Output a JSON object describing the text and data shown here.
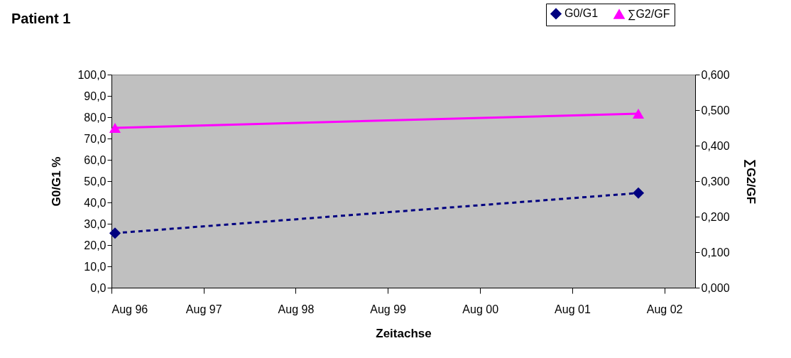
{
  "chart_data": {
    "type": "line",
    "title": "Patient 1",
    "xlabel": "Zeitachse",
    "ylabel": "G0/G1 %",
    "y2label": "∑G2/GF",
    "xlim": [
      "1996-08-01",
      "2002-12-01"
    ],
    "xticks": [
      {
        "value": "1996-08-01",
        "label": "Aug 96"
      },
      {
        "value": "1997-08-01",
        "label": "Aug 97"
      },
      {
        "value": "1998-08-01",
        "label": "Aug 98"
      },
      {
        "value": "1999-08-01",
        "label": "Aug 99"
      },
      {
        "value": "2000-08-01",
        "label": "Aug 00"
      },
      {
        "value": "2001-08-01",
        "label": "Aug 01"
      },
      {
        "value": "2002-08-01",
        "label": "Aug 02"
      }
    ],
    "ylim": [
      0,
      100
    ],
    "yticks": [
      {
        "value": 0,
        "label": "0,0"
      },
      {
        "value": 10,
        "label": "10,0"
      },
      {
        "value": 20,
        "label": "20,0"
      },
      {
        "value": 30,
        "label": "30,0"
      },
      {
        "value": 40,
        "label": "40,0"
      },
      {
        "value": 50,
        "label": "50,0"
      },
      {
        "value": 60,
        "label": "60,0"
      },
      {
        "value": 70,
        "label": "70,0"
      },
      {
        "value": 80,
        "label": "80,0"
      },
      {
        "value": 90,
        "label": "90,0"
      },
      {
        "value": 100,
        "label": "100,0"
      }
    ],
    "y2lim": [
      0,
      0.6
    ],
    "y2ticks": [
      {
        "value": 0,
        "label": "0,000"
      },
      {
        "value": 0.1,
        "label": "0,100"
      },
      {
        "value": 0.2,
        "label": "0,200"
      },
      {
        "value": 0.3,
        "label": "0,300"
      },
      {
        "value": 0.4,
        "label": "0,400"
      },
      {
        "value": 0.5,
        "label": "0,500"
      },
      {
        "value": 0.6,
        "label": "0,600"
      }
    ],
    "x": [
      "1996-08-15",
      "2002-04-20"
    ],
    "series": [
      {
        "name": "G0/G1",
        "color": "#000080",
        "values": [
          25.6,
          44.4
        ],
        "marker": "diamond",
        "line_style": "dashed"
      },
      {
        "name": "∑G2/GF",
        "color": "#ff00ff",
        "values": [
          0.45,
          0.49
        ],
        "marker": "triangle",
        "line_style": "solid",
        "axis": "y2"
      }
    ],
    "grid": false,
    "legend": "top right"
  }
}
